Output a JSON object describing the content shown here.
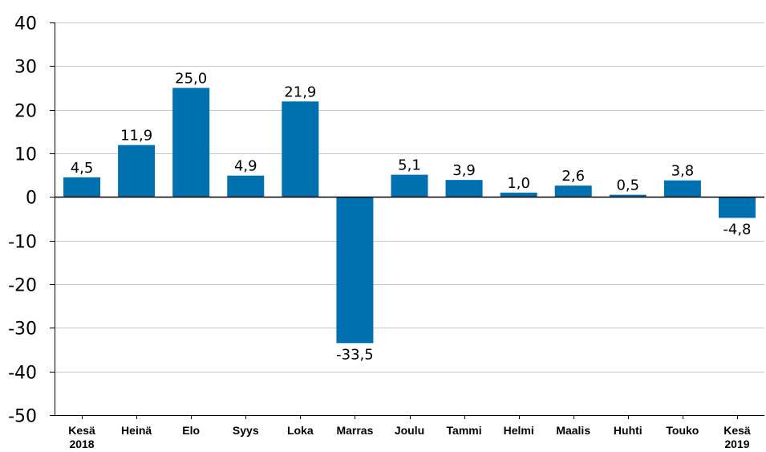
{
  "chart_data": {
    "type": "bar",
    "title": "",
    "xlabel": "",
    "ylabel": "",
    "categories": [
      [
        "Kesä",
        "2018"
      ],
      [
        "Heinä"
      ],
      [
        "Elo"
      ],
      [
        "Syys"
      ],
      [
        "Loka"
      ],
      [
        "Marras"
      ],
      [
        "Joulu"
      ],
      [
        "Tammi"
      ],
      [
        "Helmi"
      ],
      [
        "Maalis"
      ],
      [
        "Huhti"
      ],
      [
        "Touko"
      ],
      [
        "Kesä",
        "2019"
      ]
    ],
    "values": [
      4.5,
      11.9,
      25.0,
      4.9,
      21.9,
      -33.5,
      5.1,
      3.9,
      1.0,
      2.6,
      0.5,
      3.8,
      -4.8
    ],
    "data_labels": [
      "4,5",
      "11,9",
      "25,0",
      "4,9",
      "21,9",
      "-33,5",
      "5,1",
      "3,9",
      "1,0",
      "2,6",
      "0,5",
      "3,8",
      "-4,8"
    ],
    "ylim": [
      -50,
      40
    ],
    "yticks": [
      40,
      30,
      20,
      10,
      0,
      -10,
      -20,
      -30,
      -40,
      -50
    ],
    "ytick_labels": [
      "40",
      "30",
      "20",
      "10",
      "0",
      "-10",
      "-20",
      "-30",
      "-40",
      "-50"
    ],
    "grid": true,
    "legend": "none",
    "colors": {
      "bar": "#0070b0",
      "grid": "#c8c8c8",
      "axis": "#000000"
    }
  }
}
